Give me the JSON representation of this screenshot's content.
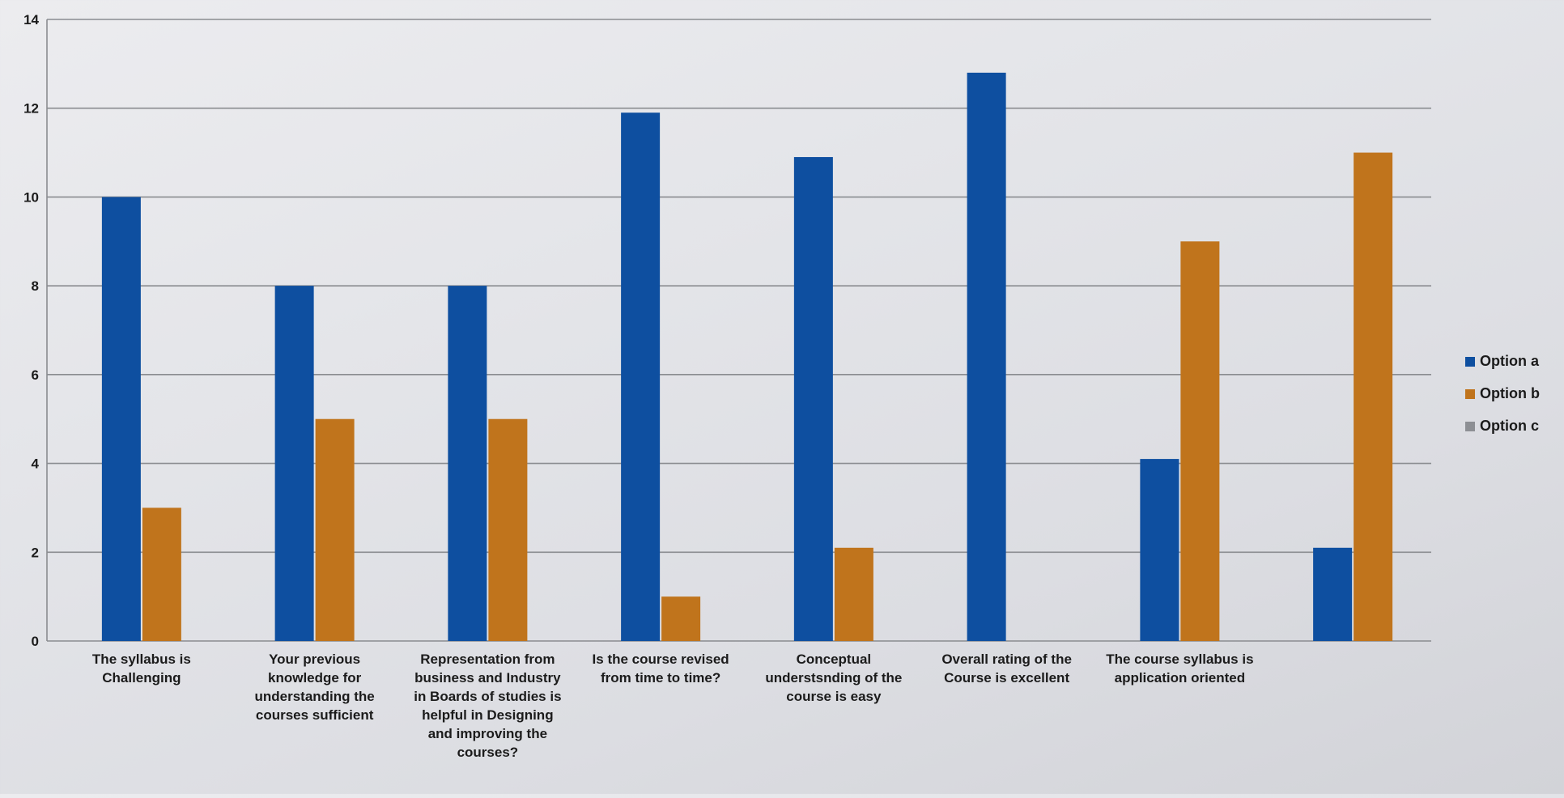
{
  "chart_data": {
    "type": "bar",
    "title": "",
    "xlabel": "",
    "ylabel": "",
    "ylim": [
      0,
      14
    ],
    "yticks": [
      0,
      2,
      4,
      6,
      8,
      10,
      12,
      14
    ],
    "grid": true,
    "legend_position": "right",
    "categories": [
      [
        "The syllabus is",
        "Challenging"
      ],
      [
        "Your previous",
        "knowledge for",
        "understanding the",
        "courses sufficient"
      ],
      [
        "Representation from",
        "business and Industry",
        "in  Boards of studies is",
        "helpful in Designing",
        "and improving the",
        "courses?"
      ],
      [
        "Is the course revised",
        "from time to time?"
      ],
      [
        "Conceptual",
        "understsnding of the",
        "course is easy"
      ],
      [
        "Overall rating of the",
        "Course is excellent"
      ],
      [
        "The course syllabus is",
        "application oriented"
      ],
      []
    ],
    "series": [
      {
        "name": "Option a",
        "color": "#0e4fa0",
        "values": [
          10,
          8,
          8,
          11.9,
          10.9,
          12.8,
          4.1,
          2.1
        ]
      },
      {
        "name": "Option b",
        "color": "#c0741c",
        "values": [
          3,
          5,
          5,
          1,
          2.1,
          0,
          9,
          11
        ]
      },
      {
        "name": "Option c",
        "color": "#8d8f94",
        "values": [
          0,
          0,
          0,
          0,
          0,
          0,
          0,
          0
        ]
      }
    ]
  }
}
